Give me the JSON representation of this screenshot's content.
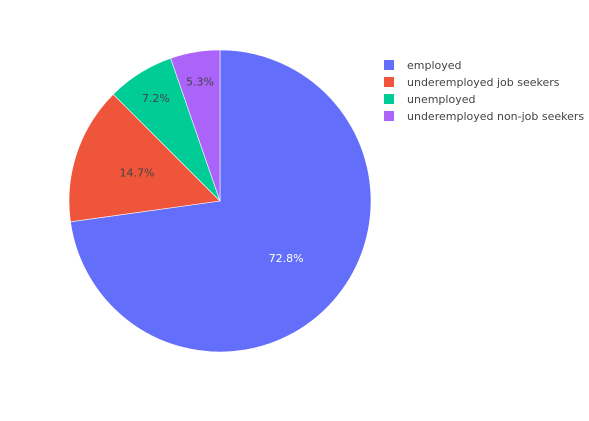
{
  "chart_data": {
    "type": "pie",
    "title": "",
    "labels": [
      "employed",
      "underemployed job seekers",
      "unemployed",
      "underemployed non-job seekers"
    ],
    "values": [
      72.8,
      14.7,
      7.2,
      5.3
    ],
    "value_labels": [
      "72.8%",
      "14.7%",
      "7.2%",
      "5.3%"
    ],
    "colors": [
      "#636efa",
      "#ef553b",
      "#00cc96",
      "#ab63fa"
    ],
    "label_colors": [
      "#ffffff",
      "#444444",
      "#444444",
      "#444444"
    ],
    "start": "top",
    "direction": "clockwise",
    "legend_placement": "top-right"
  }
}
